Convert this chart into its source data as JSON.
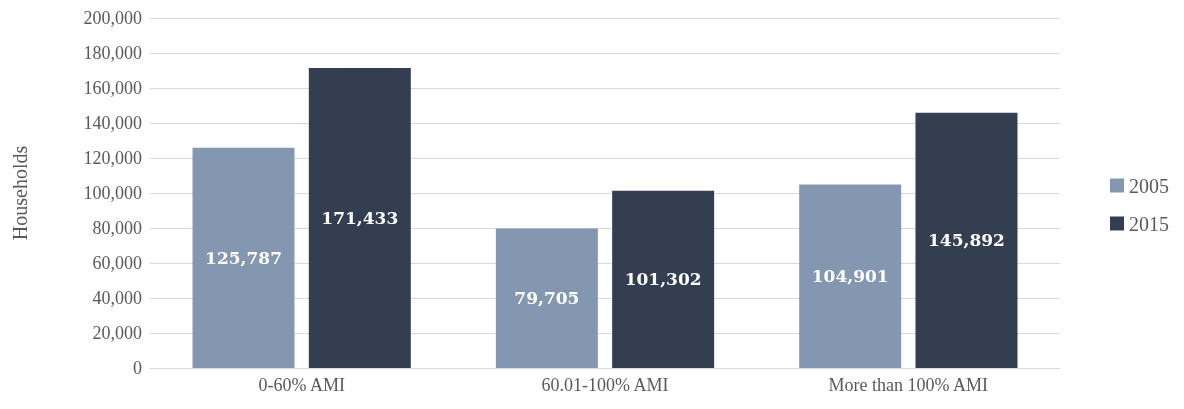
{
  "chart_data": {
    "type": "bar",
    "ylabel": "Households",
    "categories": [
      "0-60% AMI",
      "60.01-100% AMI",
      "More than 100% AMI"
    ],
    "series": [
      {
        "name": "2005",
        "color": "#8497b0",
        "values": [
          125787,
          79705,
          104901
        ],
        "value_labels": [
          "125,787",
          "79,705",
          "104,901"
        ]
      },
      {
        "name": "2015",
        "color": "#333f50",
        "values": [
          171433,
          101302,
          145892
        ],
        "value_labels": [
          "171,433",
          "101,302",
          "145,892"
        ]
      }
    ],
    "ylim": [
      0,
      200000
    ],
    "yticks": [
      0,
      {
        "value": 20000,
        "label": "20,000"
      },
      {
        "value": 40000,
        "label": "40,000"
      },
      {
        "value": 60000,
        "label": "60,000"
      },
      {
        "value": 80000,
        "label": "80,000"
      },
      {
        "value": 100000,
        "label": "100,000"
      },
      {
        "value": 120000,
        "label": "120,000"
      },
      {
        "value": 140000,
        "label": "140,000"
      },
      {
        "value": 160000,
        "label": "160,000"
      },
      {
        "value": 180000,
        "label": "180,000"
      },
      {
        "value": 200000,
        "label": "200,000"
      }
    ],
    "grid": "y",
    "legend": "right"
  }
}
